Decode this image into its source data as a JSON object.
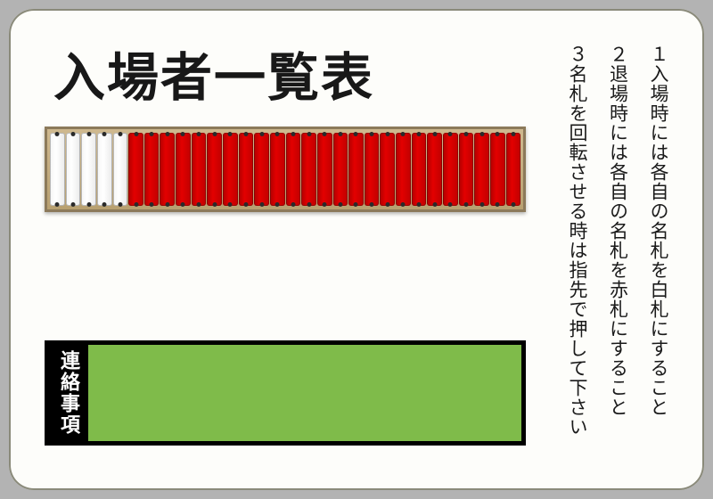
{
  "title": "入場者一覧表",
  "rack": {
    "total_tags": 30,
    "white_count": 5,
    "white_color": "#ffffff",
    "red_color": "#e30000",
    "frame_color": "#b8a070"
  },
  "contact": {
    "label": "連絡事項",
    "body_color": "#7fbb4a",
    "border_color": "#000000"
  },
  "instructions": [
    "１入場時には各自の名札を白札にすること",
    "２退場時には各自の名札を赤札にすること",
    "３名札を回転させる時は指先で押して下さい"
  ],
  "colors": {
    "board_bg": "#fdfdfa",
    "page_bg": "#b3b3b3",
    "text": "#181818"
  }
}
